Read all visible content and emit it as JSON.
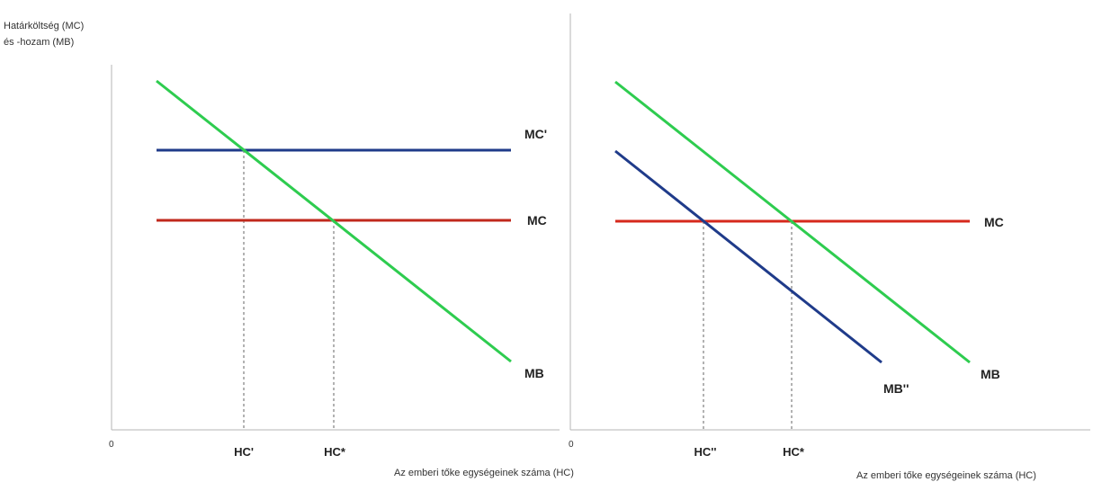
{
  "colors": {
    "axis": "#b5b5b5",
    "green": "#2ecc4f",
    "blue": "#1f3b8a",
    "red": "#c0281c",
    "guide": "#666666"
  },
  "y_axis_title": [
    "Határköltség (MC)",
    "és -hozam (MB)"
  ],
  "left_panel": {
    "origin": "0",
    "x_axis_title": "Az emberi tőke egységeinek száma (HC)",
    "labels": {
      "mc_prime": "MC'",
      "mc": "MC",
      "mb": "MB"
    },
    "ticks": [
      "HC'",
      "HC*"
    ]
  },
  "right_panel": {
    "origin": "0",
    "x_axis_title": "Az emberi tőke egységeinek száma (HC)",
    "labels": {
      "mc": "MC",
      "mb": "MB",
      "mb_dprime": "MB''"
    },
    "ticks": [
      "HC''",
      "HC*"
    ]
  }
}
